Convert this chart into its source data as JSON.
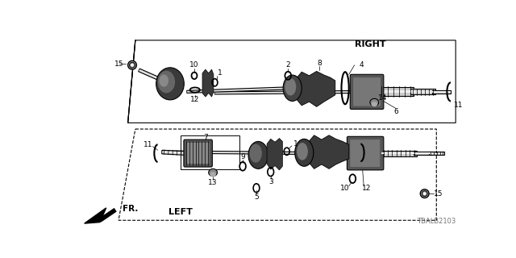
{
  "bg_color": "#ffffff",
  "lc": "#000000",
  "dc": "#2a2a2a",
  "mc": "#555555",
  "lgc": "#888888",
  "right_label": "RIGHT",
  "left_label": "LEFT",
  "fr_label": "FR.",
  "part_number": "TBALB2103",
  "figsize": [
    6.4,
    3.2
  ],
  "dpi": 100,
  "title_fs": 8,
  "num_fs": 6.5
}
